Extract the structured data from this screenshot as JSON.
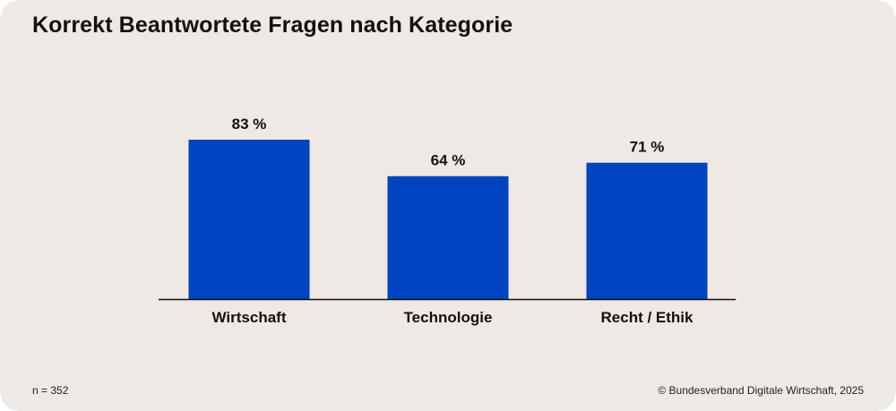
{
  "chart_data": {
    "type": "bar",
    "title": "Korrekt Beantwortete Fragen nach Kategorie",
    "categories": [
      "Wirtschaft",
      "Technologie",
      "Recht / Ethik"
    ],
    "values": [
      83,
      64,
      71
    ],
    "value_labels": [
      "83 %",
      "64 %",
      "71 %"
    ],
    "unit": "%",
    "ylim": [
      0,
      83
    ],
    "grid": false,
    "legend": "none",
    "bar_color": "#0044c1"
  },
  "footer": {
    "sample_note": "n = 352",
    "source": "© Bundesverband Digitale Wirtschaft, 2025"
  },
  "colors": {
    "background": "#efe9e5",
    "bar": "#0044c1",
    "axis": "#111111",
    "text": "#111111"
  }
}
